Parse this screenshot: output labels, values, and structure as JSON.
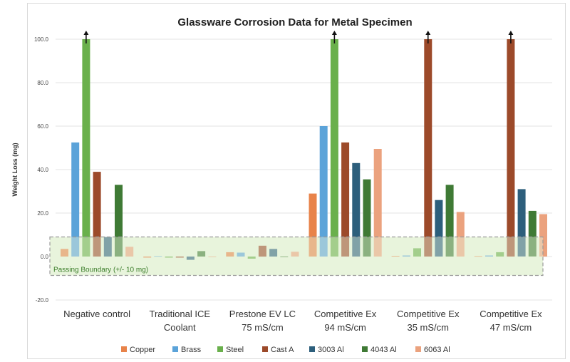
{
  "chart_data": {
    "type": "bar",
    "title": "Glassware Corrosion Data for Metal Specimen",
    "ylabel": "Weight Loss (mg)",
    "xlabel": "",
    "ylim": [
      -20,
      100
    ],
    "yticks": [
      -20,
      0,
      20,
      40,
      60,
      80,
      100
    ],
    "ytick_labels": [
      "-20.0",
      "0.0",
      "20.0",
      "40.0",
      "60.0",
      "80.0",
      "100.0"
    ],
    "grid": true,
    "legend_position": "bottom",
    "categories": [
      [
        "Negative control"
      ],
      [
        "Traditional ICE",
        "Coolant"
      ],
      [
        "Prestone EV LC",
        "75 mS/cm"
      ],
      [
        "Competitive Ex",
        "94 mS/cm"
      ],
      [
        "Competitive Ex",
        "35 mS/cm"
      ],
      [
        "Competitive Ex",
        "47 mS/cm"
      ]
    ],
    "series": [
      {
        "name": "Copper",
        "color": "#e8834a",
        "values": [
          3.5,
          -0.5,
          2.0,
          29.0,
          0.3,
          0.2
        ]
      },
      {
        "name": "Brass",
        "color": "#5ba3d9",
        "values": [
          52.5,
          0.2,
          1.8,
          60.0,
          0.5,
          0.5
        ]
      },
      {
        "name": "Steel",
        "color": "#6ab04c",
        "values": [
          100.0,
          -0.5,
          -1.0,
          100.0,
          3.8,
          2.0
        ]
      },
      {
        "name": "Cast A",
        "color": "#9c4a2a",
        "values": [
          39.0,
          -0.5,
          5.0,
          52.5,
          100.0,
          100.0
        ]
      },
      {
        "name": "3003 Al",
        "color": "#2d5f7c",
        "values": [
          9.0,
          -1.5,
          3.5,
          43.0,
          26.0,
          31.0
        ]
      },
      {
        "name": "4043 Al",
        "color": "#3f7a35",
        "values": [
          33.0,
          2.5,
          -0.3,
          35.5,
          33.0,
          21.0
        ]
      },
      {
        "name": "6063 Al",
        "color": "#eba27e",
        "values": [
          4.5,
          -0.3,
          2.2,
          49.5,
          20.5,
          19.5
        ]
      }
    ],
    "exceeds_axis_arrows": [
      {
        "category": 0,
        "series": "Steel"
      },
      {
        "category": 3,
        "series": "Steel"
      },
      {
        "category": 4,
        "series": "Cast A"
      },
      {
        "category": 5,
        "series": "Cast A"
      }
    ],
    "annotations": {
      "passing_boundary_label": "Passing Boundary (+/- 10 mg)",
      "passing_boundary_range": [
        -10,
        10
      ],
      "passing_boundary_color": "#e8f5dc"
    }
  }
}
